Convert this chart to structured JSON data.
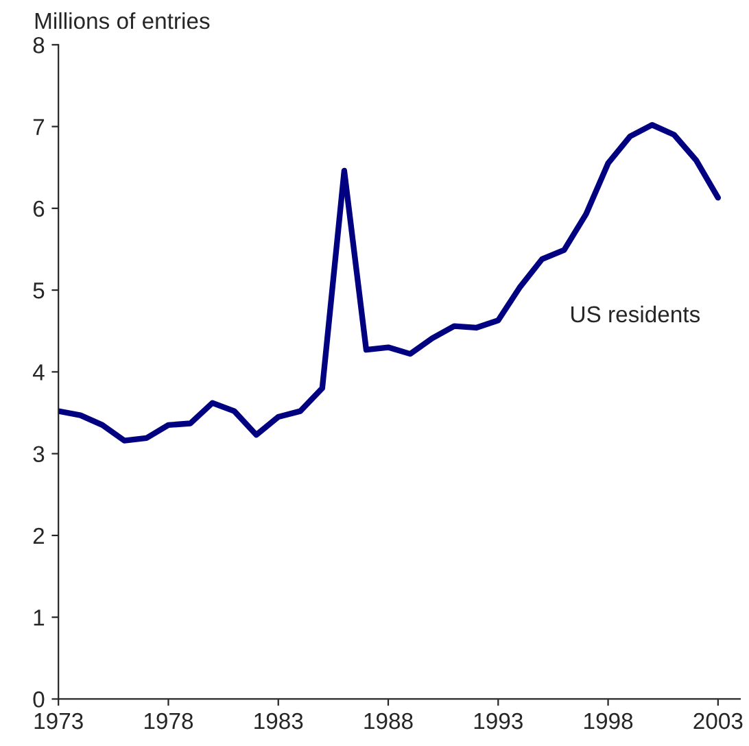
{
  "chart_data": {
    "type": "line",
    "ylabel": "Millions of entries",
    "annotations": [
      "US residents"
    ],
    "x": [
      1973,
      1974,
      1975,
      1976,
      1977,
      1978,
      1979,
      1980,
      1981,
      1982,
      1983,
      1984,
      1985,
      1986,
      1987,
      1988,
      1989,
      1990,
      1991,
      1992,
      1993,
      1994,
      1995,
      1996,
      1997,
      1998,
      1999,
      2000,
      2001,
      2002,
      2003
    ],
    "series": [
      {
        "color": "#000080",
        "values": [
          3.52,
          3.47,
          3.35,
          3.16,
          3.19,
          3.35,
          3.37,
          3.62,
          3.52,
          3.23,
          3.45,
          3.52,
          3.8,
          6.46,
          4.27,
          4.3,
          4.22,
          4.41,
          4.56,
          4.54,
          4.63,
          5.04,
          5.38,
          5.49,
          5.93,
          6.55,
          6.88,
          7.02,
          6.9,
          6.59,
          6.13
        ]
      }
    ],
    "xlim": [
      1973,
      2004
    ],
    "xticks": [
      1973,
      1978,
      1983,
      1988,
      1993,
      1998,
      2003
    ],
    "ylim": [
      0,
      8
    ],
    "yticks": [
      0,
      1,
      2,
      3,
      4,
      5,
      6,
      7,
      8
    ],
    "grid": false,
    "legend": false,
    "marker": "none",
    "line_style": "solid"
  }
}
